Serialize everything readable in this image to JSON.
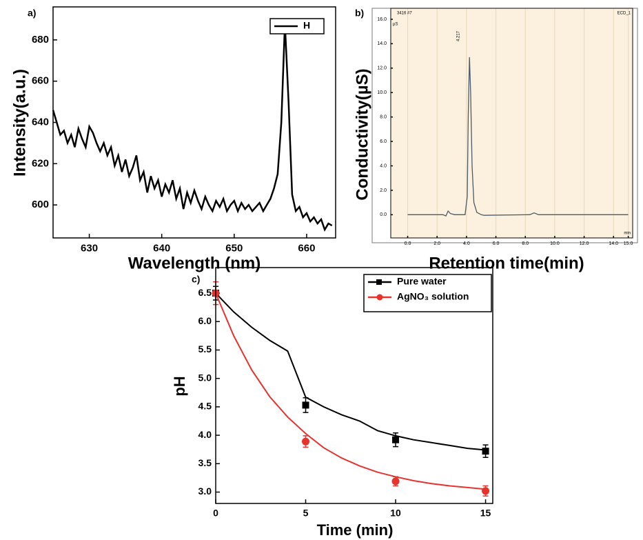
{
  "chart_data": [
    {
      "type": "line",
      "label": "a)",
      "xlabel": "Wavelength (nm)",
      "ylabel": "Intensity(a.u.)",
      "xlim": [
        625,
        664
      ],
      "ylim": [
        584,
        696
      ],
      "xticks": [
        630,
        640,
        650,
        660
      ],
      "yticks": [
        600,
        620,
        640,
        660,
        680
      ],
      "legend": "top-right",
      "series": [
        {
          "name": "H",
          "color": "#000000",
          "x": [
            625,
            625.5,
            626,
            626.5,
            627,
            627.5,
            628,
            628.5,
            629,
            629.5,
            630,
            630.5,
            631,
            631.5,
            632,
            632.5,
            633,
            633.5,
            634,
            634.5,
            635,
            635.5,
            636,
            636.5,
            637,
            637.5,
            638,
            638.5,
            639,
            639.5,
            640,
            640.5,
            641,
            641.5,
            642,
            642.5,
            643,
            643.5,
            644,
            644.5,
            645,
            645.5,
            646,
            646.5,
            647,
            647.5,
            648,
            648.5,
            649,
            649.5,
            650,
            650.5,
            651,
            651.5,
            652,
            652.5,
            653,
            653.5,
            654,
            654.5,
            655,
            655.5,
            656,
            656.5,
            657,
            657.5,
            658,
            658.5,
            659,
            659.5,
            660,
            660.5,
            661,
            661.5,
            662,
            662.5,
            663,
            663.5
          ],
          "values": [
            646,
            640,
            634,
            636,
            630,
            634,
            628,
            637,
            632,
            628,
            638,
            635,
            630,
            626,
            630,
            624,
            628,
            619,
            624,
            616,
            622,
            614,
            618,
            624,
            612,
            616,
            606,
            614,
            608,
            612,
            604,
            610,
            606,
            612,
            603,
            608,
            598,
            606,
            601,
            607,
            602,
            598,
            604,
            600,
            597,
            602,
            599,
            603,
            597,
            600,
            602,
            597,
            601,
            598,
            600,
            597,
            599,
            601,
            597,
            600,
            603,
            608,
            615,
            640,
            688,
            650,
            605,
            597,
            599,
            594,
            596,
            592,
            594,
            591,
            593,
            588,
            591,
            590
          ]
        }
      ]
    },
    {
      "type": "line",
      "label": "b)",
      "xlabel": "Retention time(min)",
      "ylabel": "Conductivity(µS)",
      "background_color": "#fbf1de",
      "grid": true,
      "annotations": [
        "3416 #7",
        "ECD_1",
        "µS",
        "min",
        "4.217"
      ],
      "xlim": [
        -1.15,
        15.3
      ],
      "ylim": [
        -1.9,
        16.9
      ],
      "xticks": [
        {
          "value": 0,
          "label": "0.0"
        },
        {
          "value": 2,
          "label": "2.0"
        },
        {
          "value": 4,
          "label": "4.0"
        },
        {
          "value": 6,
          "label": "6.0"
        },
        {
          "value": 8,
          "label": "8.0"
        },
        {
          "value": 10,
          "label": "10.0"
        },
        {
          "value": 12,
          "label": "12.0"
        },
        {
          "value": 14,
          "label": "14.0"
        },
        {
          "value": 15,
          "label": "15.0"
        }
      ],
      "yticks": [
        {
          "value": 0,
          "label": "0.0"
        },
        {
          "value": 2,
          "label": "2.0"
        },
        {
          "value": 4,
          "label": "4.0"
        },
        {
          "value": 6,
          "label": "6.0"
        },
        {
          "value": 8,
          "label": "8.0"
        },
        {
          "value": 10,
          "label": "10.0"
        },
        {
          "value": 12,
          "label": "12.0"
        },
        {
          "value": 14,
          "label": "14.0"
        },
        {
          "value": 16,
          "label": "16.0"
        }
      ],
      "series": [
        {
          "color": "#4a5a6a",
          "x": [
            0,
            2.4,
            2.6,
            2.75,
            2.9,
            3.2,
            3.9,
            4.05,
            4.12,
            4.2,
            4.28,
            4.38,
            4.5,
            4.7,
            5.0,
            5.2,
            8.3,
            8.6,
            8.9,
            15
          ],
          "values": [
            0,
            0,
            -0.1,
            0.3,
            0.1,
            0,
            0,
            1.5,
            8,
            12.9,
            10,
            4,
            1,
            0.2,
            0,
            -0.05,
            0,
            0.15,
            0,
            0
          ]
        }
      ]
    },
    {
      "type": "scatter",
      "label": "c)",
      "xlabel": "Time (min)",
      "ylabel": "pH",
      "xlim": [
        0,
        15.4
      ],
      "ylim": [
        2.8,
        6.95
      ],
      "xticks": [
        0,
        5,
        10,
        15
      ],
      "yticks": [
        {
          "value": 3,
          "label": "3.0"
        },
        3.5,
        {
          "value": 4,
          "label": "4.0"
        },
        4.5,
        {
          "value": 5,
          "label": "5.0"
        },
        5.5,
        {
          "value": 6,
          "label": "6.0"
        },
        6.5
      ],
      "legend": "top-right",
      "series": [
        {
          "name": "Pure water",
          "color": "#000000",
          "marker": "square",
          "x": [
            0,
            5,
            10,
            15
          ],
          "values": [
            6.5,
            4.53,
            3.92,
            3.72
          ],
          "errors": [
            0.12,
            0.13,
            0.12,
            0.11
          ],
          "fit_x": [
            0,
            1,
            2,
            3,
            4,
            5,
            6,
            7,
            8,
            9,
            10,
            11,
            12,
            13,
            14,
            15
          ],
          "fit_values": [
            6.5,
            6.17,
            5.9,
            5.67,
            5.48,
            4.67,
            4.5,
            4.36,
            4.25,
            4.08,
            3.99,
            3.92,
            3.87,
            3.82,
            3.77,
            3.74
          ]
        },
        {
          "name": "AgNO₃ solution",
          "color": "#e8322c",
          "marker": "circle",
          "x": [
            0,
            5,
            10,
            15
          ],
          "values": [
            6.5,
            3.89,
            3.19,
            3.02
          ],
          "errors": [
            0.2,
            0.1,
            0.08,
            0.09
          ],
          "fit_x": [
            0,
            1,
            2,
            3,
            4,
            5,
            6,
            7,
            8,
            9,
            10,
            11,
            12,
            13,
            14,
            15
          ],
          "fit_values": [
            6.5,
            5.75,
            5.15,
            4.68,
            4.32,
            4.03,
            3.78,
            3.6,
            3.46,
            3.35,
            3.27,
            3.2,
            3.15,
            3.11,
            3.08,
            3.05
          ]
        }
      ]
    }
  ]
}
